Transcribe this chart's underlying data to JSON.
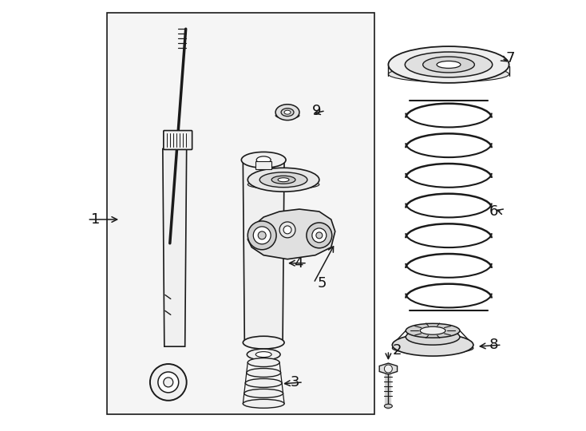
{
  "bg_color": "#ffffff",
  "box_bg": "#f5f5f5",
  "line_color": "#1a1a1a",
  "label_color": "#111111",
  "fig_width": 7.34,
  "fig_height": 5.4,
  "dpi": 100
}
